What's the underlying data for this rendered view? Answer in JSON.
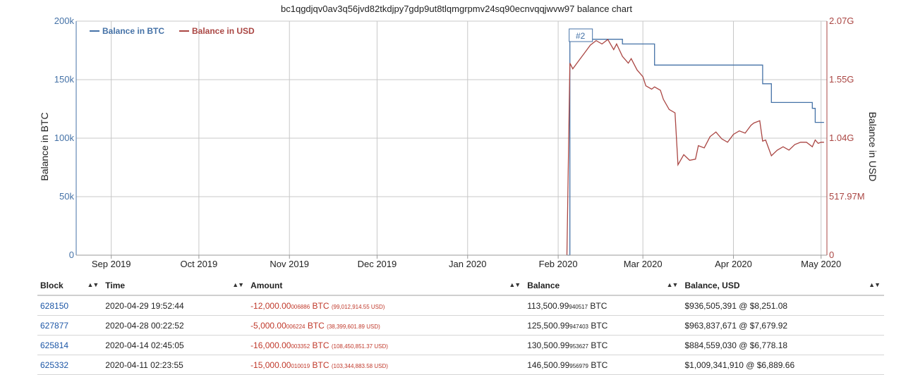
{
  "chart_data": {
    "type": "line",
    "title": "bc1qgdjqv0av3q56jvd82tkdjpy7gdp9ut8tlqmgrpmv24sq90ecnvqqjwvw97 balance chart",
    "x_ticks": [
      "Sep 2019",
      "Oct 2019",
      "Nov 2019",
      "Dec 2019",
      "Jan 2020",
      "Feb 2020",
      "Mar 2020",
      "Apr 2020",
      "May 2020"
    ],
    "x_range": [
      "2019-08-20",
      "2020-05-03"
    ],
    "y_left": {
      "label": "Balance in BTC",
      "ticks": [
        "0",
        "50k",
        "100k",
        "150k",
        "200k"
      ],
      "tick_values": [
        0,
        50000,
        100000,
        150000,
        200000
      ],
      "range": [
        0,
        200000
      ]
    },
    "y_right": {
      "label": "Balance in USD",
      "ticks": [
        "0",
        "517.97M",
        "1.04G",
        "1.55G",
        "2.07G"
      ],
      "tick_values": [
        0,
        517970000,
        1036000000,
        1554000000,
        2072000000
      ],
      "range": [
        0,
        2072000000
      ]
    },
    "grid": true,
    "legend_position": "top-left",
    "annotation": "#2",
    "annotation_date": "2020-02-05",
    "series": [
      {
        "name": "Balance in BTC",
        "color": "#4572a7",
        "axis": "left",
        "step": true,
        "points": [
          [
            "2020-02-04",
            0
          ],
          [
            "2020-02-05",
            184500
          ],
          [
            "2020-02-23",
            180500
          ],
          [
            "2020-03-05",
            162500
          ],
          [
            "2020-04-11",
            146500
          ],
          [
            "2020-04-14",
            130500
          ],
          [
            "2020-04-28",
            125500
          ],
          [
            "2020-04-29",
            113500
          ],
          [
            "2020-05-02",
            113500
          ]
        ]
      },
      {
        "name": "Balance in USD",
        "color": "#aa4643",
        "axis": "right",
        "step": false,
        "points": [
          [
            "2020-02-04",
            0
          ],
          [
            "2020-02-05",
            1700000000
          ],
          [
            "2020-02-06",
            1650000000
          ],
          [
            "2020-02-08",
            1720000000
          ],
          [
            "2020-02-10",
            1790000000
          ],
          [
            "2020-02-12",
            1860000000
          ],
          [
            "2020-02-14",
            1900000000
          ],
          [
            "2020-02-16",
            1870000000
          ],
          [
            "2020-02-18",
            1910000000
          ],
          [
            "2020-02-20",
            1820000000
          ],
          [
            "2020-02-21",
            1870000000
          ],
          [
            "2020-02-23",
            1760000000
          ],
          [
            "2020-02-25",
            1700000000
          ],
          [
            "2020-02-26",
            1740000000
          ],
          [
            "2020-02-28",
            1640000000
          ],
          [
            "2020-03-01",
            1580000000
          ],
          [
            "2020-03-02",
            1500000000
          ],
          [
            "2020-03-04",
            1470000000
          ],
          [
            "2020-03-05",
            1490000000
          ],
          [
            "2020-03-07",
            1460000000
          ],
          [
            "2020-03-08",
            1380000000
          ],
          [
            "2020-03-10",
            1290000000
          ],
          [
            "2020-03-12",
            1260000000
          ],
          [
            "2020-03-13",
            800000000
          ],
          [
            "2020-03-15",
            890000000
          ],
          [
            "2020-03-17",
            840000000
          ],
          [
            "2020-03-19",
            850000000
          ],
          [
            "2020-03-20",
            970000000
          ],
          [
            "2020-03-22",
            950000000
          ],
          [
            "2020-03-24",
            1050000000
          ],
          [
            "2020-03-26",
            1090000000
          ],
          [
            "2020-03-28",
            1030000000
          ],
          [
            "2020-03-30",
            1000000000
          ],
          [
            "2020-04-01",
            1070000000
          ],
          [
            "2020-04-03",
            1100000000
          ],
          [
            "2020-04-05",
            1080000000
          ],
          [
            "2020-04-07",
            1150000000
          ],
          [
            "2020-04-08",
            1170000000
          ],
          [
            "2020-04-10",
            1190000000
          ],
          [
            "2020-04-11",
            1010000000
          ],
          [
            "2020-04-12",
            1020000000
          ],
          [
            "2020-04-14",
            880000000
          ],
          [
            "2020-04-16",
            930000000
          ],
          [
            "2020-04-18",
            960000000
          ],
          [
            "2020-04-20",
            930000000
          ],
          [
            "2020-04-22",
            980000000
          ],
          [
            "2020-04-24",
            1000000000
          ],
          [
            "2020-04-26",
            1000000000
          ],
          [
            "2020-04-28",
            960000000
          ],
          [
            "2020-04-29",
            1020000000
          ],
          [
            "2020-04-30",
            990000000
          ],
          [
            "2020-05-01",
            1000000000
          ],
          [
            "2020-05-02",
            1000000000
          ]
        ]
      }
    ]
  },
  "table": {
    "headers": [
      "Block",
      "Time",
      "Amount",
      "Balance",
      "Balance, USD"
    ],
    "rows": [
      {
        "block": "628150",
        "time": "2020-04-29 19:52:44",
        "amount_main": "-12,000.00",
        "amount_small": "006886",
        "amount_unit": "BTC",
        "amount_usd": "(99,012,914.55 USD)",
        "balance_main": "113,500.99",
        "balance_small": "940517",
        "balance_unit": "BTC",
        "balance_usd": "$936,505,391 @ $8,251.08"
      },
      {
        "block": "627877",
        "time": "2020-04-28 00:22:52",
        "amount_main": "-5,000.00",
        "amount_small": "006224",
        "amount_unit": "BTC",
        "amount_usd": "(38,399,601.89 USD)",
        "balance_main": "125,500.99",
        "balance_small": "947403",
        "balance_unit": "BTC",
        "balance_usd": "$963,837,671 @ $7,679.92"
      },
      {
        "block": "625814",
        "time": "2020-04-14 02:45:05",
        "amount_main": "-16,000.00",
        "amount_small": "003352",
        "amount_unit": "BTC",
        "amount_usd": "(108,450,851.37 USD)",
        "balance_main": "130,500.99",
        "balance_small": "953627",
        "balance_unit": "BTC",
        "balance_usd": "$884,559,030 @ $6,778.18"
      },
      {
        "block": "625332",
        "time": "2020-04-11 02:23:55",
        "amount_main": "-15,000.00",
        "amount_small": "010019",
        "amount_unit": "BTC",
        "amount_usd": "(103,344,883.58 USD)",
        "balance_main": "146,500.99",
        "balance_small": "956979",
        "balance_unit": "BTC",
        "balance_usd": "$1,009,341,910 @ $6,889.66"
      }
    ]
  }
}
